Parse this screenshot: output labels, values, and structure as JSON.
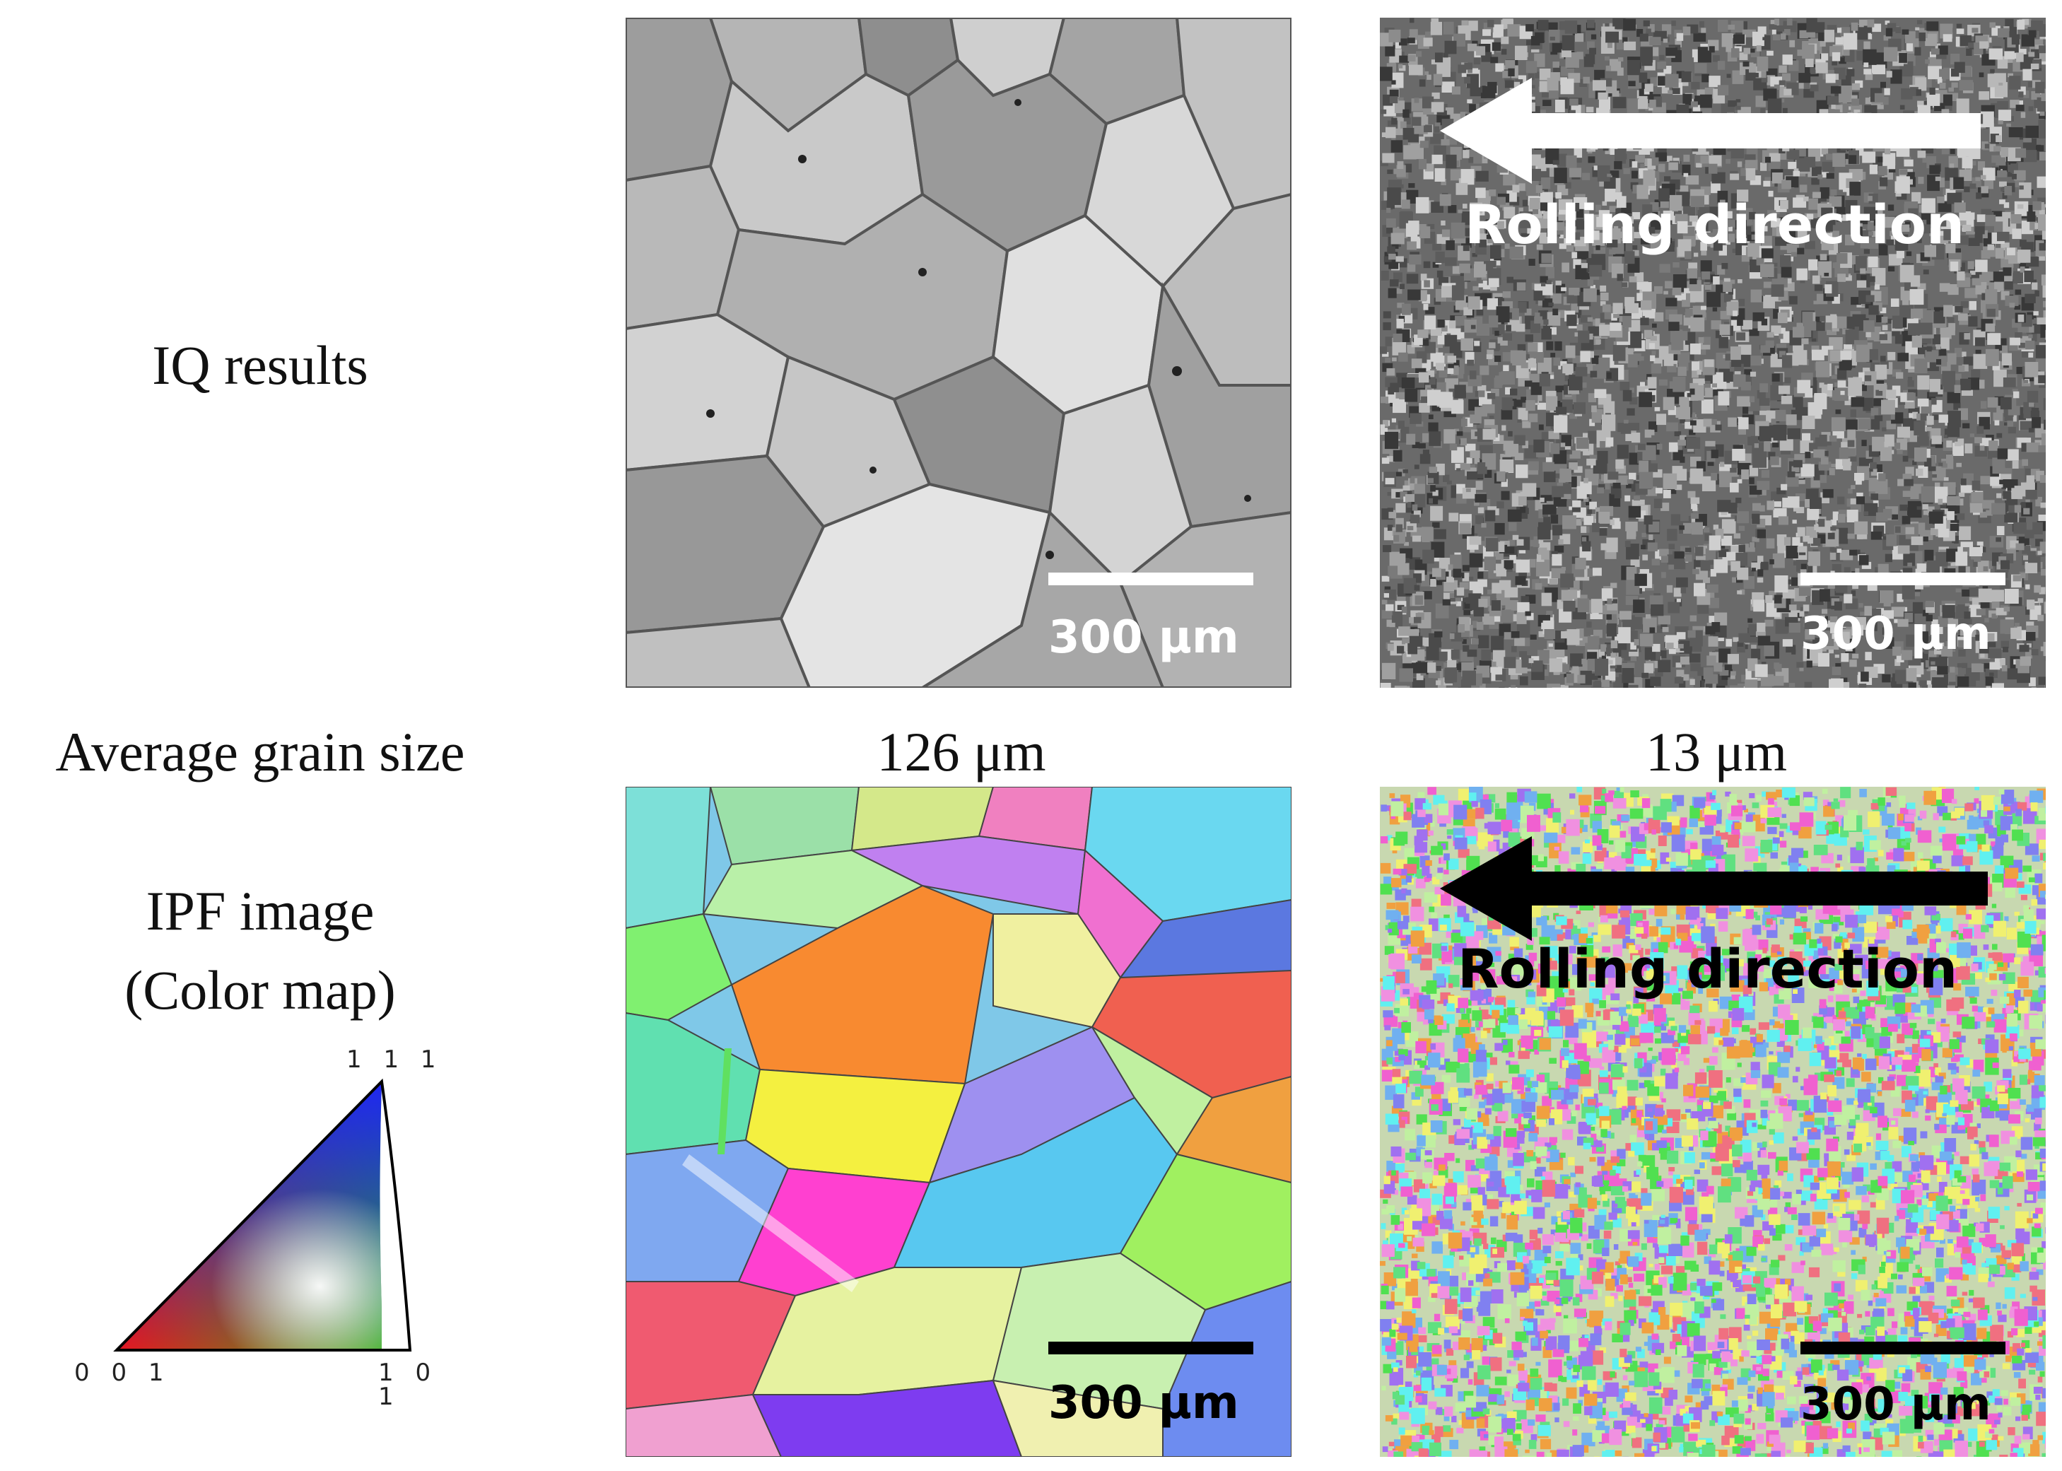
{
  "row_labels": {
    "iq": "IQ results",
    "grain": "Average grain size",
    "ipf_line1": "IPF image",
    "ipf_line2": "(Color map)"
  },
  "grain_sizes": {
    "left": "126 μm",
    "right": "13 μm"
  },
  "panels": {
    "iq_left": {
      "scale": "300 μm"
    },
    "iq_right": {
      "scale": "300 μm",
      "arrow_text": "Rolling direction"
    },
    "ipf_left": {
      "scale": "300 μm"
    },
    "ipf_right": {
      "scale": "300 μm",
      "arrow_text": "Rolling direction"
    }
  },
  "triangle": {
    "top": "1 1 1",
    "bottom_left": "0 0 1",
    "bottom_right": "1 0 1"
  }
}
